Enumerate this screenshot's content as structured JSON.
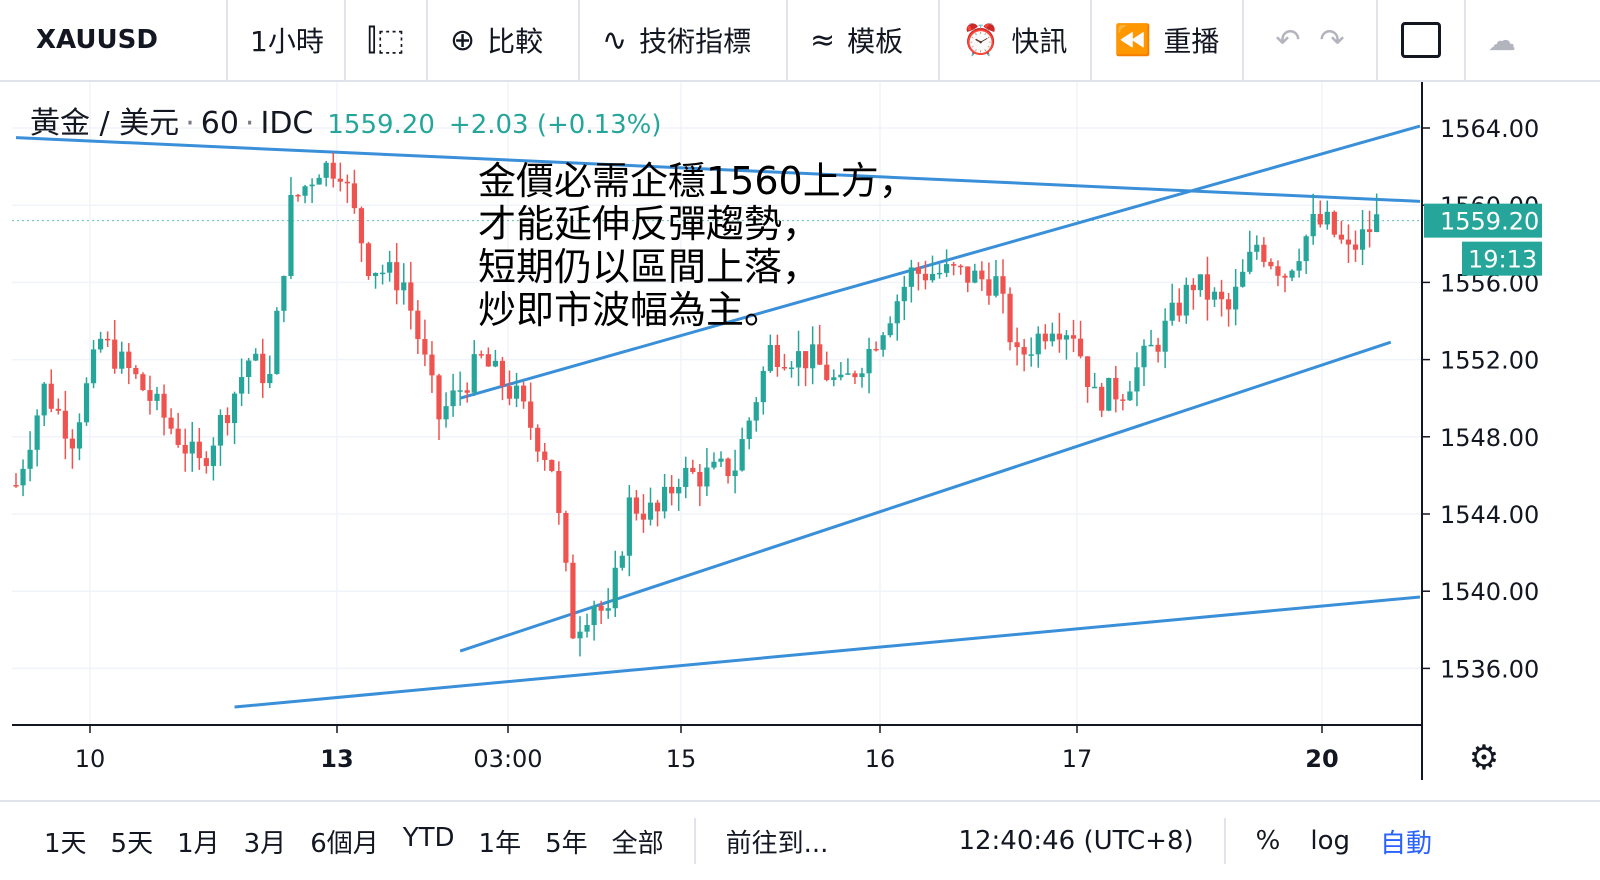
{
  "toolbar": {
    "symbol": "XAUUSD",
    "interval": "1小時",
    "compare": "比較",
    "indicators": "技術指標",
    "templates": "模板",
    "alert": "快訊",
    "replay": "重播"
  },
  "legend": {
    "name": "黃金 / 美元",
    "interval": "60",
    "source": "IDC",
    "price": "1559.20",
    "change": "+2.03 (+0.13%)"
  },
  "annotation": "金價必需企穩1560上方，\n才能延伸反彈趨勢，\n短期仍以區間上落，\n炒即市波幅為主。",
  "price_labels": {
    "last": "1559.20",
    "countdown": "19:13"
  },
  "bottombar": {
    "ranges": [
      "1天",
      "5天",
      "1月",
      "3月",
      "6個月",
      "YTD",
      "1年",
      "5年",
      "全部"
    ],
    "goto": "前往到...",
    "clock": "12:40:46 (UTC+8)",
    "percent": "%",
    "log": "log",
    "auto": "自動"
  },
  "colors": {
    "up": "#26a69a",
    "down": "#ef5350",
    "trendline": "#3a8fd9",
    "accent": "#2962ff"
  },
  "chart_data": {
    "type": "candlestick",
    "y_ticks": [
      1564,
      1560,
      1556,
      1552,
      1548,
      1544,
      1540,
      1536
    ],
    "y_tick_labels": [
      "1564.00",
      "1560.00",
      "1556.00",
      "1552.00",
      "1548.00",
      "1544.00",
      "1540.00",
      "1536.00"
    ],
    "x_ticks": [
      {
        "label": "10",
        "bold": false
      },
      {
        "label": "13",
        "bold": true
      },
      {
        "label": "03:00",
        "bold": false
      },
      {
        "label": "15",
        "bold": false
      },
      {
        "label": "16",
        "bold": false
      },
      {
        "label": "17",
        "bold": false
      },
      {
        "label": "20",
        "bold": true
      }
    ],
    "last_price": 1559.2,
    "trendlines": [
      {
        "from": [
          0,
          1563.5
        ],
        "to": [
          200,
          1560.2
        ]
      },
      {
        "from": [
          63,
          1550.0
        ],
        "to": [
          200,
          1564.1
        ]
      },
      {
        "from": [
          63,
          1536.9
        ],
        "to": [
          195,
          1552.9
        ]
      },
      {
        "from": [
          31,
          1534.0
        ],
        "to": [
          200,
          1539.7
        ]
      }
    ],
    "anchors": [
      [
        0,
        1545.5
      ],
      [
        4,
        1550.5
      ],
      [
        8,
        1548.0
      ],
      [
        12,
        1553.0
      ],
      [
        17,
        1551.0
      ],
      [
        22,
        1548.5
      ],
      [
        26,
        1546.5
      ],
      [
        30,
        1549.5
      ],
      [
        33,
        1552.0
      ],
      [
        36,
        1551.0
      ],
      [
        39,
        1560.0
      ],
      [
        43,
        1562.0
      ],
      [
        46,
        1562.0
      ],
      [
        50,
        1557.0
      ],
      [
        55,
        1556.0
      ],
      [
        60,
        1549.0
      ],
      [
        66,
        1552.0
      ],
      [
        71,
        1550.0
      ],
      [
        76,
        1546.5
      ],
      [
        79,
        1538.0
      ],
      [
        82,
        1539.5
      ],
      [
        84,
        1538.5
      ],
      [
        87,
        1544.5
      ],
      [
        91,
        1544.0
      ],
      [
        94,
        1546.0
      ],
      [
        98,
        1546.0
      ],
      [
        102,
        1546.5
      ],
      [
        107,
        1552.5
      ],
      [
        113,
        1552.0
      ],
      [
        117,
        1550.5
      ],
      [
        121,
        1552.5
      ],
      [
        127,
        1556.5
      ],
      [
        133,
        1556.5
      ],
      [
        139,
        1556.0
      ],
      [
        142,
        1552.0
      ],
      [
        147,
        1554.0
      ],
      [
        150,
        1553.5
      ],
      [
        153,
        1550.0
      ],
      [
        157,
        1550.5
      ],
      [
        162,
        1553.0
      ],
      [
        167,
        1556.0
      ],
      [
        172,
        1554.5
      ],
      [
        176,
        1558.0
      ],
      [
        180,
        1556.5
      ],
      [
        184,
        1559.0
      ],
      [
        186,
        1559.0
      ],
      [
        189,
        1557.5
      ],
      [
        193,
        1559.2
      ]
    ]
  }
}
